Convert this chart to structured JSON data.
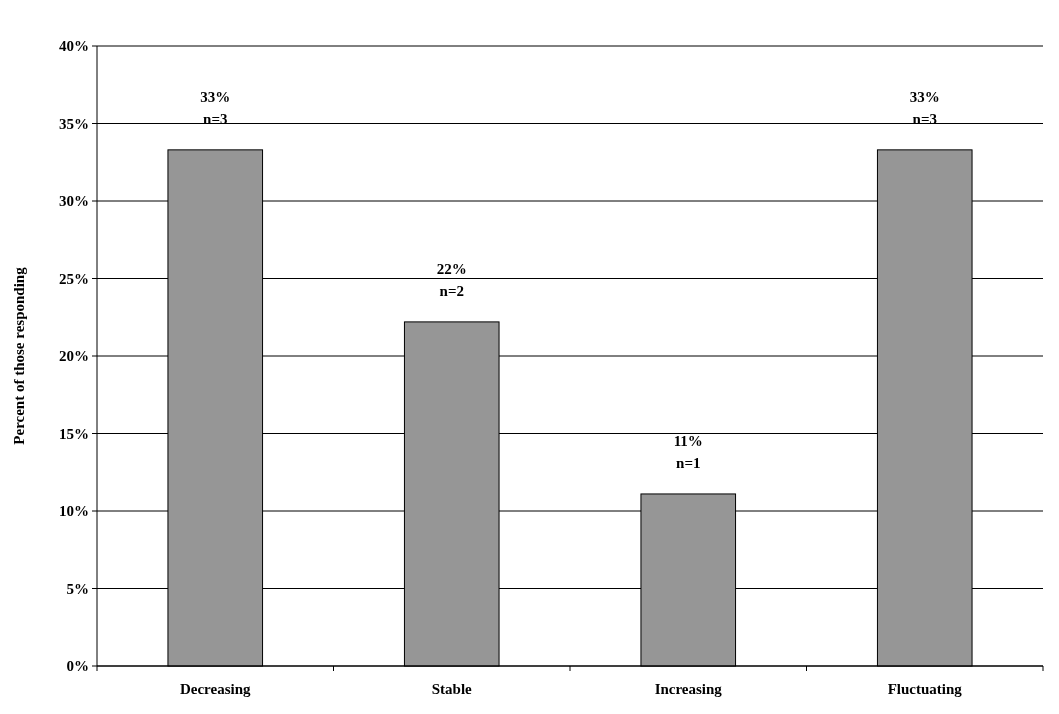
{
  "chart_data": {
    "type": "bar",
    "ylabel": "Percent of those responding",
    "categories": [
      "Decreasing",
      "Stable",
      "Increasing",
      "Fluctuating"
    ],
    "values": [
      33.3,
      22.2,
      11.1,
      33.3
    ],
    "color": "#969696",
    "value_labels": [
      "33%\nn=3",
      "22%\nn=2",
      "11%\nn=1",
      "33%\nn=3"
    ],
    "ylim": [
      0,
      40
    ],
    "yticks": [
      {
        "value": 0,
        "label": "0%"
      },
      {
        "value": 5,
        "label": "5%"
      },
      {
        "value": 10,
        "label": "10%"
      },
      {
        "value": 15,
        "label": "15%"
      },
      {
        "value": 20,
        "label": "20%"
      },
      {
        "value": 25,
        "label": "25%"
      },
      {
        "value": 30,
        "label": "30%"
      },
      {
        "value": 35,
        "label": "35%"
      },
      {
        "value": 40,
        "label": "40%"
      }
    ],
    "grid": "y"
  }
}
